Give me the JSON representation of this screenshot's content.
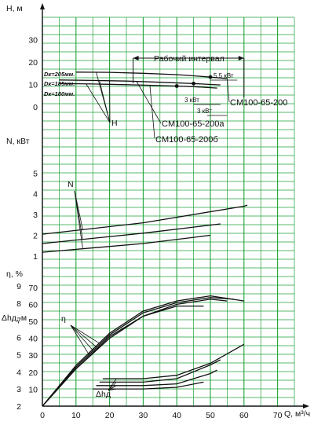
{
  "chart_data": {
    "type": "line",
    "x": {
      "label": "Q, м³/ч",
      "ticks": [
        "0",
        "10",
        "20",
        "30",
        "40",
        "50",
        "60",
        "70"
      ],
      "range": [
        0,
        75
      ]
    },
    "panels": [
      {
        "id": "head",
        "ylabel": "H, м",
        "yticks": [
          "30",
          "20",
          "10",
          "0"
        ],
        "ylim": [
          0,
          40
        ],
        "series": [
          {
            "name": "CM100-65-200",
            "diameter_label": "Dк=205мм.",
            "points": [
              [
                10,
                15.5
              ],
              [
                20,
                15.4
              ],
              [
                30,
                15
              ],
              [
                40,
                14.4
              ],
              [
                50,
                13.3
              ],
              [
                55,
                12.6
              ]
            ]
          },
          {
            "name": "CM100-65-200а",
            "diameter_label": "Dк=185мм.",
            "points": [
              [
                5,
                12
              ],
              [
                15,
                11.8
              ],
              [
                25,
                11.5
              ],
              [
                35,
                11
              ],
              [
                45,
                10.4
              ],
              [
                53,
                9.8
              ]
            ]
          },
          {
            "name": "CM100-65-200б",
            "diameter_label": "Dк=180мм.",
            "points": [
              [
                5,
                10.4
              ],
              [
                15,
                10.2
              ],
              [
                25,
                9.9
              ],
              [
                35,
                9.5
              ],
              [
                45,
                9
              ],
              [
                52,
                8.4
              ]
            ]
          }
        ],
        "annotations": {
          "range_label": "Рабочий интервал",
          "range": [
            27,
            60
          ],
          "curve_label": "H",
          "power_labels": [
            "5,5 кВт",
            "3 кВт",
            "3 кВт"
          ]
        }
      },
      {
        "id": "power",
        "ylabel": "N, кВт",
        "yticks": [
          "5",
          "4",
          "3",
          "2",
          "1"
        ],
        "ylim": [
          0.5,
          6
        ],
        "curve_label": "N",
        "series": [
          {
            "points": [
              [
                0,
                2.05
              ],
              [
                30,
                2.6
              ],
              [
                60,
                3.4
              ],
              [
                61,
                3.45
              ]
            ]
          },
          {
            "points": [
              [
                0,
                1.6
              ],
              [
                30,
                2.1
              ],
              [
                53,
                2.55
              ]
            ]
          },
          {
            "points": [
              [
                0,
                1.18
              ],
              [
                30,
                1.6
              ],
              [
                50,
                2
              ]
            ]
          }
        ]
      },
      {
        "id": "efficiency",
        "ylabel": "η, %",
        "ylabel2": "Δhд, м",
        "yticks": [
          "70",
          "60",
          "50",
          "40",
          "30",
          "20",
          "10"
        ],
        "yticks2": [
          "9",
          "8",
          "7",
          "6",
          "5",
          "4",
          "3",
          "2"
        ],
        "ylim": [
          0,
          75
        ],
        "curve_label": "η",
        "npsh_label": "Δhд",
        "series": [
          {
            "points": [
              [
                0,
                0
              ],
              [
                10,
                22
              ],
              [
                20,
                40
              ],
              [
                30,
                53
              ],
              [
                40,
                60
              ],
              [
                50,
                63
              ],
              [
                55,
                62
              ]
            ]
          },
          {
            "points": [
              [
                0,
                0
              ],
              [
                10,
                23
              ],
              [
                20,
                42
              ],
              [
                30,
                55
              ],
              [
                40,
                61
              ],
              [
                50,
                64
              ],
              [
                57,
                63
              ]
            ]
          },
          {
            "points": [
              [
                0,
                0
              ],
              [
                10,
                24
              ],
              [
                20,
                43
              ],
              [
                30,
                56
              ],
              [
                40,
                62
              ],
              [
                50,
                65
              ],
              [
                60,
                62
              ]
            ]
          },
          {
            "points": [
              [
                0,
                0
              ],
              [
                10,
                22
              ],
              [
                20,
                41
              ],
              [
                30,
                53
              ],
              [
                40,
                59
              ],
              [
                48,
                59
              ]
            ]
          }
        ],
        "npsh_series": [
          {
            "points": [
              [
                18,
                3.6
              ],
              [
                30,
                3.6
              ],
              [
                40,
                3.8
              ],
              [
                50,
                4.5
              ],
              [
                60,
                5.6
              ]
            ]
          },
          {
            "points": [
              [
                17,
                3.4
              ],
              [
                30,
                3.4
              ],
              [
                40,
                3.6
              ],
              [
                50,
                4.4
              ],
              [
                53,
                4.7
              ]
            ]
          },
          {
            "points": [
              [
                16,
                3.2
              ],
              [
                30,
                3.2
              ],
              [
                40,
                3.3
              ],
              [
                50,
                3.9
              ],
              [
                52,
                4.1
              ]
            ]
          },
          {
            "points": [
              [
                15,
                3
              ],
              [
                30,
                3
              ],
              [
                40,
                3.1
              ],
              [
                48,
                3.4
              ]
            ]
          }
        ]
      }
    ]
  }
}
